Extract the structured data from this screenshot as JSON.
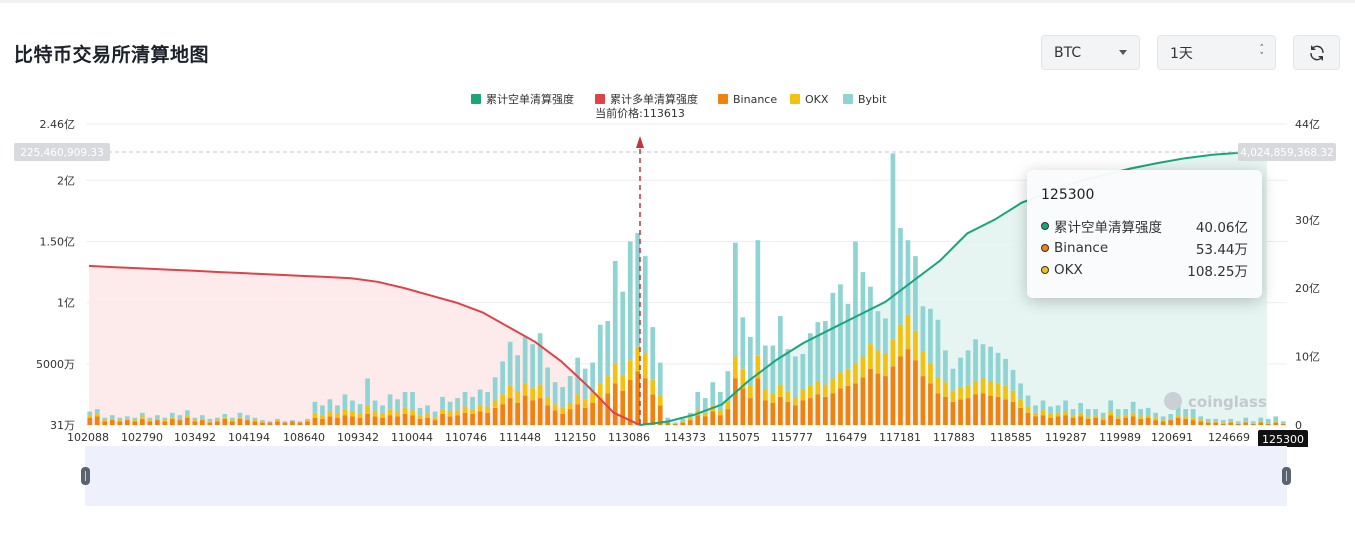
{
  "page": {
    "title": "比特币交易所清算地图"
  },
  "controls": {
    "coin": {
      "value": "BTC",
      "icon": "caret-down-icon"
    },
    "range": {
      "value": "1天",
      "icon": "spinner-icon"
    },
    "refresh": {
      "icon": "refresh-icon"
    }
  },
  "colors": {
    "short": "#1aa57a",
    "long": "#e0424a",
    "binance": "#f0820f",
    "okx": "#f2c20e",
    "bybit": "#8fd3d3"
  },
  "chart_data": {
    "type": "bar",
    "legend": [
      {
        "name": "累计空单清算强度",
        "color": "#1aa57a"
      },
      {
        "name": "累计多单清算强度",
        "color": "#e0424a"
      },
      {
        "name": "Binance",
        "color": "#f0820f"
      },
      {
        "name": "OKX",
        "color": "#f2c20e"
      },
      {
        "name": "Bybit",
        "color": "#8fd3d3"
      }
    ],
    "current_price_label": "当前价格:113613",
    "current_price": 113613,
    "y_left_ticks": [
      "31万",
      "5000万",
      "1亿",
      "1.50亿",
      "2亿",
      "2.46亿"
    ],
    "y_right_ticks": [
      "0",
      "10亿",
      "20亿",
      "30亿",
      "44亿"
    ],
    "y_left_range": [
      0,
      2.46
    ],
    "y_left_unit": "亿",
    "y_right_range": [
      0,
      44
    ],
    "y_right_unit": "亿",
    "left_crosshair_label": "225,460,909.33",
    "right_crosshair_label": "4,024,859,368.32",
    "x_ticks": [
      "102088",
      "102790",
      "103492",
      "104194",
      "108640",
      "109342",
      "110044",
      "110746",
      "111448",
      "112150",
      "113086",
      "114373",
      "115075",
      "115777",
      "116479",
      "117181",
      "117883",
      "118585",
      "119287",
      "119989",
      "120691",
      "124669"
    ],
    "x_selected": "125300",
    "stacks": [
      [
        0.06,
        0.02,
        0.03
      ],
      [
        0.07,
        0.02,
        0.04
      ],
      [
        0.03,
        0.01,
        0.02
      ],
      [
        0.04,
        0.01,
        0.03
      ],
      [
        0.03,
        0.01,
        0.02
      ],
      [
        0.04,
        0.01,
        0.02
      ],
      [
        0.03,
        0.01,
        0.02
      ],
      [
        0.05,
        0.02,
        0.03
      ],
      [
        0.03,
        0.01,
        0.02
      ],
      [
        0.04,
        0.01,
        0.03
      ],
      [
        0.03,
        0.01,
        0.02
      ],
      [
        0.05,
        0.01,
        0.04
      ],
      [
        0.04,
        0.01,
        0.03
      ],
      [
        0.06,
        0.02,
        0.04
      ],
      [
        0.03,
        0.01,
        0.02
      ],
      [
        0.04,
        0.01,
        0.03
      ],
      [
        0.02,
        0.01,
        0.02
      ],
      [
        0.03,
        0.01,
        0.02
      ],
      [
        0.05,
        0.01,
        0.03
      ],
      [
        0.03,
        0.01,
        0.02
      ],
      [
        0.05,
        0.01,
        0.04
      ],
      [
        0.04,
        0.01,
        0.03
      ],
      [
        0.03,
        0.01,
        0.02
      ],
      [
        0.02,
        0.01,
        0.01
      ],
      [
        0.02,
        0.0,
        0.01
      ],
      [
        0.03,
        0.01,
        0.01
      ],
      [
        0.02,
        0.0,
        0.01
      ],
      [
        0.03,
        0.0,
        0.01
      ],
      [
        0.02,
        0.0,
        0.01
      ],
      [
        0.03,
        0.01,
        0.01
      ],
      [
        0.06,
        0.04,
        0.09
      ],
      [
        0.05,
        0.03,
        0.08
      ],
      [
        0.07,
        0.04,
        0.1
      ],
      [
        0.06,
        0.03,
        0.07
      ],
      [
        0.08,
        0.05,
        0.12
      ],
      [
        0.07,
        0.04,
        0.09
      ],
      [
        0.06,
        0.03,
        0.08
      ],
      [
        0.09,
        0.07,
        0.22
      ],
      [
        0.07,
        0.04,
        0.09
      ],
      [
        0.06,
        0.03,
        0.07
      ],
      [
        0.08,
        0.05,
        0.12
      ],
      [
        0.07,
        0.04,
        0.1
      ],
      [
        0.09,
        0.05,
        0.13
      ],
      [
        0.08,
        0.04,
        0.15
      ],
      [
        0.05,
        0.03,
        0.06
      ],
      [
        0.06,
        0.03,
        0.07
      ],
      [
        0.04,
        0.02,
        0.05
      ],
      [
        0.09,
        0.04,
        0.1
      ],
      [
        0.07,
        0.04,
        0.08
      ],
      [
        0.08,
        0.04,
        0.1
      ],
      [
        0.1,
        0.05,
        0.12
      ],
      [
        0.09,
        0.04,
        0.1
      ],
      [
        0.11,
        0.05,
        0.13
      ],
      [
        0.1,
        0.05,
        0.12
      ],
      [
        0.14,
        0.06,
        0.19
      ],
      [
        0.17,
        0.08,
        0.27
      ],
      [
        0.22,
        0.1,
        0.36
      ],
      [
        0.18,
        0.09,
        0.3
      ],
      [
        0.24,
        0.1,
        0.38
      ],
      [
        0.2,
        0.1,
        0.36
      ],
      [
        0.22,
        0.11,
        0.42
      ],
      [
        0.16,
        0.07,
        0.24
      ],
      [
        0.12,
        0.05,
        0.18
      ],
      [
        0.09,
        0.05,
        0.17
      ],
      [
        0.13,
        0.05,
        0.22
      ],
      [
        0.17,
        0.08,
        0.3
      ],
      [
        0.14,
        0.07,
        0.25
      ],
      [
        0.18,
        0.08,
        0.25
      ],
      [
        0.22,
        0.12,
        0.48
      ],
      [
        0.26,
        0.14,
        0.45
      ],
      [
        0.34,
        0.16,
        0.84
      ],
      [
        0.28,
        0.13,
        0.68
      ],
      [
        0.37,
        0.16,
        0.97
      ],
      [
        0.44,
        0.2,
        0.93
      ],
      [
        0.38,
        0.2,
        0.8
      ],
      [
        0.25,
        0.12,
        0.43
      ],
      [
        0.16,
        0.08,
        0.27
      ],
      [
        0.02,
        0.01,
        0.03
      ],
      [
        0.01,
        0.0,
        0.01
      ],
      [
        0.02,
        0.01,
        0.02
      ],
      [
        0.04,
        0.02,
        0.04
      ],
      [
        0.08,
        0.04,
        0.15
      ],
      [
        0.07,
        0.03,
        0.12
      ],
      [
        0.11,
        0.05,
        0.19
      ],
      [
        0.08,
        0.04,
        0.15
      ],
      [
        0.13,
        0.06,
        0.25
      ],
      [
        0.38,
        0.18,
        0.93
      ],
      [
        0.3,
        0.16,
        0.42
      ],
      [
        0.22,
        0.1,
        0.4
      ],
      [
        0.38,
        0.19,
        0.94
      ],
      [
        0.2,
        0.09,
        0.36
      ],
      [
        0.18,
        0.08,
        0.39
      ],
      [
        0.23,
        0.1,
        0.56
      ],
      [
        0.19,
        0.08,
        0.35
      ],
      [
        0.16,
        0.07,
        0.33
      ],
      [
        0.2,
        0.09,
        0.29
      ],
      [
        0.22,
        0.1,
        0.43
      ],
      [
        0.25,
        0.11,
        0.48
      ],
      [
        0.23,
        0.1,
        0.52
      ],
      [
        0.26,
        0.12,
        0.7
      ],
      [
        0.3,
        0.13,
        0.72
      ],
      [
        0.32,
        0.14,
        0.53
      ],
      [
        0.34,
        0.16,
        1.0
      ],
      [
        0.39,
        0.17,
        0.69
      ],
      [
        0.46,
        0.2,
        0.47
      ],
      [
        0.42,
        0.19,
        0.32
      ],
      [
        0.4,
        0.18,
        0.29
      ],
      [
        0.48,
        0.22,
        1.52
      ],
      [
        0.56,
        0.26,
        0.79
      ],
      [
        0.62,
        0.28,
        0.61
      ],
      [
        0.53,
        0.24,
        0.61
      ],
      [
        0.4,
        0.2,
        0.37
      ],
      [
        0.34,
        0.16,
        0.45
      ],
      [
        0.26,
        0.13,
        0.47
      ],
      [
        0.23,
        0.12,
        0.26
      ],
      [
        0.19,
        0.09,
        0.18
      ],
      [
        0.21,
        0.1,
        0.24
      ],
      [
        0.22,
        0.1,
        0.29
      ],
      [
        0.25,
        0.11,
        0.34
      ],
      [
        0.26,
        0.12,
        0.28
      ],
      [
        0.24,
        0.12,
        0.28
      ],
      [
        0.23,
        0.11,
        0.25
      ],
      [
        0.21,
        0.11,
        0.22
      ],
      [
        0.19,
        0.09,
        0.17
      ],
      [
        0.14,
        0.07,
        0.13
      ],
      [
        0.1,
        0.05,
        0.09
      ],
      [
        0.07,
        0.03,
        0.06
      ],
      [
        0.08,
        0.04,
        0.08
      ],
      [
        0.06,
        0.03,
        0.06
      ],
      [
        0.07,
        0.03,
        0.06
      ],
      [
        0.08,
        0.03,
        0.09
      ],
      [
        0.06,
        0.02,
        0.05
      ],
      [
        0.07,
        0.03,
        0.08
      ],
      [
        0.05,
        0.02,
        0.06
      ],
      [
        0.06,
        0.02,
        0.05
      ],
      [
        0.04,
        0.02,
        0.04
      ],
      [
        0.08,
        0.03,
        0.09
      ],
      [
        0.05,
        0.02,
        0.06
      ],
      [
        0.06,
        0.02,
        0.05
      ],
      [
        0.07,
        0.03,
        0.09
      ],
      [
        0.05,
        0.02,
        0.06
      ],
      [
        0.06,
        0.02,
        0.06
      ],
      [
        0.04,
        0.02,
        0.04
      ],
      [
        0.03,
        0.01,
        0.03
      ],
      [
        0.04,
        0.01,
        0.04
      ],
      [
        0.06,
        0.02,
        0.08
      ],
      [
        0.05,
        0.02,
        0.06
      ],
      [
        0.04,
        0.02,
        0.07
      ],
      [
        0.03,
        0.01,
        0.03
      ],
      [
        0.02,
        0.01,
        0.02
      ],
      [
        0.02,
        0.01,
        0.02
      ],
      [
        0.01,
        0.01,
        0.02
      ],
      [
        0.02,
        0.01,
        0.02
      ],
      [
        0.01,
        0.0,
        0.02
      ],
      [
        0.02,
        0.01,
        0.03
      ],
      [
        0.01,
        0.0,
        0.02
      ],
      [
        0.02,
        0.01,
        0.03
      ],
      [
        0.01,
        0.0,
        0.04
      ],
      [
        0.02,
        0.01,
        0.04
      ],
      [
        0.01,
        0.0,
        0.02
      ]
    ],
    "long_cumulative": [
      1.3,
      1.29,
      1.28,
      1.27,
      1.26,
      1.25,
      1.24,
      1.23,
      1.22,
      1.21,
      1.2,
      1.17,
      1.12,
      1.06,
      1.0,
      0.92,
      0.8,
      0.68,
      0.52,
      0.32,
      0.1,
      0.0
    ],
    "short_cumulative": [
      0,
      0.5,
      1.5,
      3,
      6.5,
      9.5,
      12,
      14,
      16,
      18,
      21,
      24,
      28,
      30,
      32.5,
      34,
      35.5,
      36.5,
      37.5,
      38.3,
      39,
      39.5,
      39.8,
      40.06
    ],
    "tooltip": {
      "title": "125300",
      "rows": [
        {
          "name": "累计空单清算强度",
          "value": "40.06亿",
          "color": "#1aa57a"
        },
        {
          "name": "Binance",
          "value": "53.44万",
          "color": "#f0820f"
        },
        {
          "name": "OKX",
          "value": "108.25万",
          "color": "#f2c20e"
        }
      ]
    },
    "watermark": "coinglass"
  }
}
